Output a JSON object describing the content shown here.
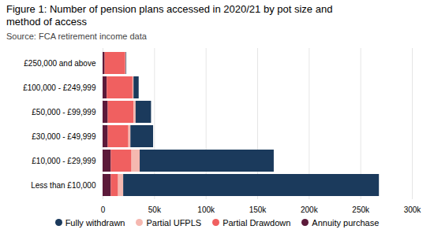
{
  "chart_data": {
    "type": "bar",
    "orientation": "horizontal",
    "stacked": true,
    "title": "Figure 1: Number of pension plans accessed in 2020/21 by pot size and\nmethod of access",
    "subtitle": "Source: FCA retirement income data",
    "categories": [
      "Less than £10,000",
      "£10,000 - £29,999",
      "£30,000 - £49,999",
      "£50,000 - £99,999",
      "£100,000 - £249,999",
      "£250,000 and above"
    ],
    "series": [
      {
        "name": "Annuity purchase",
        "color": "#5c1a3a",
        "values": [
          8000,
          8000,
          5000,
          5000,
          4000,
          2000
        ]
      },
      {
        "name": "Partial Drawdown",
        "color": "#f06060",
        "values": [
          7000,
          20000,
          20000,
          25000,
          25000,
          20000
        ]
      },
      {
        "name": "Partial UFPLS",
        "color": "#f5b8b0",
        "values": [
          5000,
          8000,
          2000,
          2000,
          1000,
          500
        ]
      },
      {
        "name": "Fully withdrawn",
        "color": "#1b3a5c",
        "values": [
          248000,
          130000,
          22000,
          15000,
          5000,
          500
        ]
      }
    ],
    "xlim": [
      0,
      300000
    ],
    "xticks": [
      0,
      {
        "value": 50000,
        "label": "50k"
      },
      {
        "value": 100000,
        "label": "100k"
      },
      {
        "value": 150000,
        "label": "150k"
      },
      {
        "value": 200000,
        "label": "200k"
      },
      {
        "value": 250000,
        "label": "250k"
      },
      {
        "value": 300000,
        "label": "300k"
      }
    ],
    "grid": true,
    "legend": "bottom"
  }
}
